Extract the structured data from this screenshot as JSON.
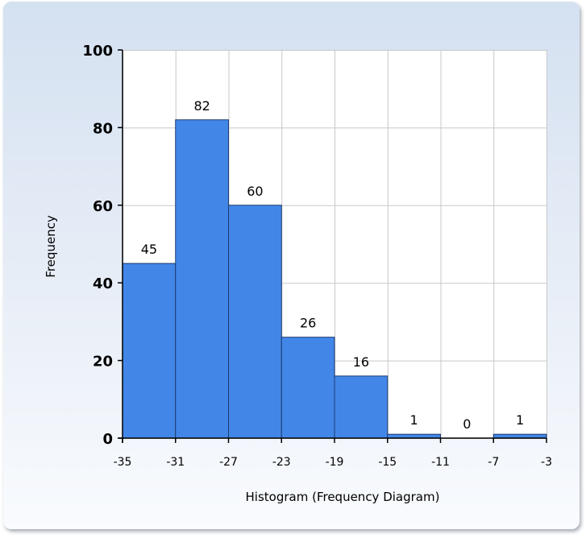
{
  "chart_data": {
    "type": "bar",
    "subtype": "histogram",
    "bin_edges": [
      -35,
      -31,
      -27,
      -23,
      -19,
      -15,
      -11,
      -7,
      -3
    ],
    "values": [
      45,
      82,
      60,
      26,
      16,
      1,
      0,
      1
    ],
    "data_labels": [
      "45",
      "82",
      "60",
      "26",
      "16",
      "1",
      "0",
      "1"
    ],
    "xlabel": "Histogram (Frequency Diagram)",
    "ylabel": "Frequency",
    "x_tick_labels": [
      "-35",
      "-31",
      "-27",
      "-23",
      "-19",
      "-15",
      "-11",
      "-7",
      "-3"
    ],
    "y_ticks": [
      0,
      20,
      40,
      60,
      80,
      100
    ],
    "y_tick_labels": [
      "0",
      "20",
      "40",
      "60",
      "80",
      "100"
    ],
    "xlim": [
      -35,
      -3
    ],
    "ylim": [
      0,
      100
    ],
    "grid": true,
    "legend": "none",
    "colors": {
      "bar_fill": "#4287e8",
      "bar_stroke": "#1c3a6e",
      "grid": "#c8c8c8",
      "plot_bg": "#ffffff",
      "axis": "#000000"
    }
  }
}
